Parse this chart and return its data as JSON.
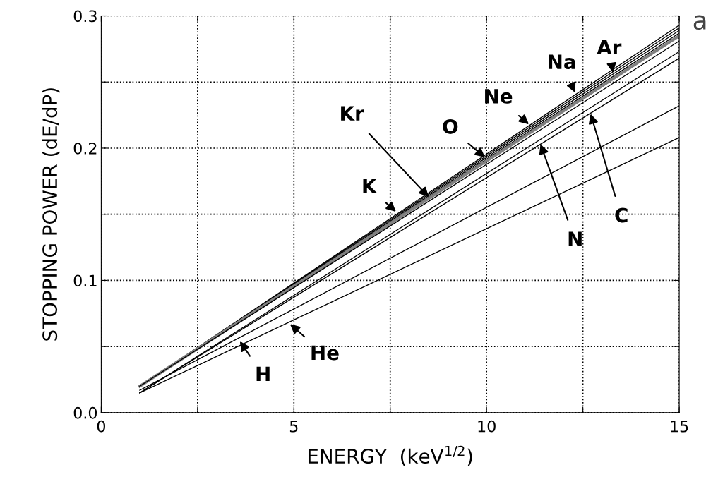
{
  "chart_data": {
    "type": "line",
    "xlabel": "ENERGY  (keV$^{1/2}$)",
    "ylabel": "STOPPING POWER (dE/dP)",
    "x": [
      1,
      15
    ],
    "series": [
      {
        "color": "#000000",
        "values": [
          0.02,
          0.293
        ]
      },
      {
        "color": "#000000",
        "values": [
          0.02,
          0.291
        ]
      },
      {
        "color": "#000000",
        "values": [
          0.02,
          0.289
        ]
      },
      {
        "color": "#000000",
        "values": [
          0.02,
          0.287
        ]
      },
      {
        "color": "#808080",
        "values": [
          0.02,
          0.285
        ]
      },
      {
        "color": "#000000",
        "values": [
          0.02,
          0.281
        ]
      },
      {
        "color": "#000000",
        "values": [
          0.015,
          0.273
        ]
      },
      {
        "color": "#000000",
        "values": [
          0.015,
          0.268
        ]
      },
      {
        "color": "#000000",
        "values": [
          0.017,
          0.232
        ]
      },
      {
        "color": "#000000",
        "values": [
          0.015,
          0.208
        ]
      }
    ],
    "annotations": [
      {
        "text": "Ar",
        "x": 13.28,
        "y": 0.257
      },
      {
        "text": "Na",
        "x": 12.3,
        "y": 0.242
      },
      {
        "text": "Ne",
        "x": 11.1,
        "y": 0.218
      },
      {
        "text": "O",
        "x": 9.96,
        "y": 0.193
      },
      {
        "text": "Kr",
        "x": 8.5,
        "y": 0.163
      },
      {
        "text": "K",
        "x": 7.65,
        "y": 0.152
      },
      {
        "text": "N",
        "x": 11.4,
        "y": 0.203
      },
      {
        "text": "C",
        "x": 12.7,
        "y": 0.226
      },
      {
        "text": "H",
        "x": 3.6,
        "y": 0.054
      },
      {
        "text": "He",
        "x": 4.9,
        "y": 0.067
      },
      "a"
    ],
    "xlim": [
      0,
      15
    ],
    "ylim": [
      0,
      0.3
    ],
    "xticks": [
      0,
      {
        "value": 2.5,
        "label": null
      },
      5,
      {
        "value": 7.5,
        "label": null
      },
      10,
      {
        "value": 12.5,
        "label": null
      },
      15
    ],
    "yticks": [
      {
        "value": 0,
        "label": "0.0"
      },
      {
        "value": 0.05,
        "label": null
      },
      0.1,
      {
        "value": 0.15,
        "label": null
      },
      0.2,
      {
        "value": 0.25,
        "label": null
      },
      0.3
    ],
    "grid": true,
    "legend": false,
    "marker": "none",
    "line_style": "solid"
  }
}
